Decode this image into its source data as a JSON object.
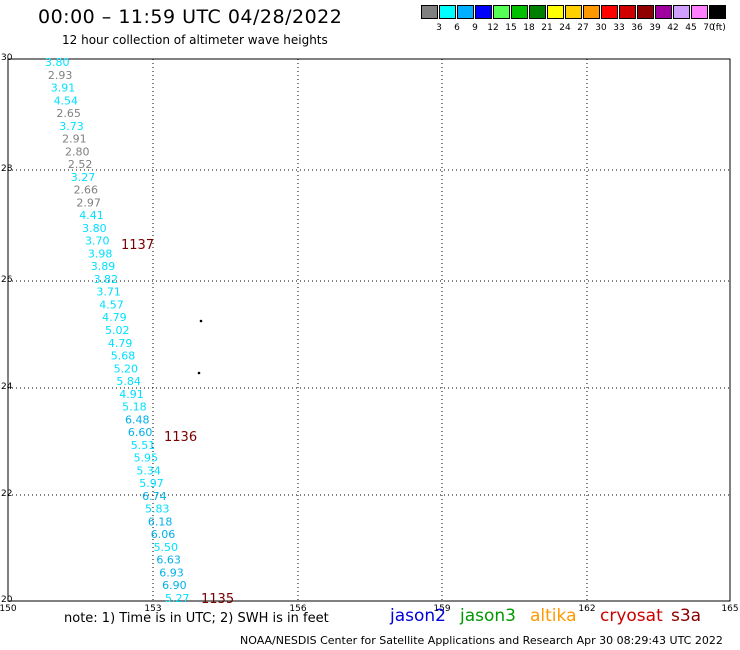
{
  "header": {
    "title": "00:00 – 11:59 UTC 04/28/2022",
    "subtitle": "12 hour collection of altimeter wave heights"
  },
  "colorbar": {
    "unit": "(ft)",
    "swatches": [
      {
        "color": "#808080",
        "label": "3"
      },
      {
        "color": "#00ffff",
        "label": "6"
      },
      {
        "color": "#00b0ff",
        "label": "9"
      },
      {
        "color": "#0000ff",
        "label": "12"
      },
      {
        "color": "#55ff55",
        "label": "15"
      },
      {
        "color": "#00c000",
        "label": "18"
      },
      {
        "color": "#008000",
        "label": "21"
      },
      {
        "color": "#ffff00",
        "label": "24"
      },
      {
        "color": "#ffd000",
        "label": "27"
      },
      {
        "color": "#ff9900",
        "label": "30"
      },
      {
        "color": "#ff0000",
        "label": "33"
      },
      {
        "color": "#d00000",
        "label": "36"
      },
      {
        "color": "#900000",
        "label": "39"
      },
      {
        "color": "#a000a0",
        "label": "42"
      },
      {
        "color": "#d0a0ff",
        "label": "45"
      },
      {
        "color": "#ff80ff",
        "label": "70"
      },
      {
        "color": "#000000",
        "label": ""
      }
    ]
  },
  "axes": {
    "lat_ticks": [
      "30",
      "28",
      "26",
      "24",
      "22",
      "20"
    ],
    "lon_ticks": [
      "150",
      "153",
      "156",
      "159",
      "162",
      "165"
    ]
  },
  "observations": [
    {
      "value": "3.80",
      "color": "#00e0ff"
    },
    {
      "value": "2.93",
      "color": "#808080"
    },
    {
      "value": "3.91",
      "color": "#00e0ff"
    },
    {
      "value": "4.54",
      "color": "#00e0ff"
    },
    {
      "value": "2.65",
      "color": "#808080"
    },
    {
      "value": "3.73",
      "color": "#00e0ff"
    },
    {
      "value": "2.91",
      "color": "#808080"
    },
    {
      "value": "2.80",
      "color": "#808080"
    },
    {
      "value": "2.52",
      "color": "#808080"
    },
    {
      "value": "3.27",
      "color": "#00e0ff"
    },
    {
      "value": "2.66",
      "color": "#808080"
    },
    {
      "value": "2.97",
      "color": "#808080"
    },
    {
      "value": "4.41",
      "color": "#00e0ff"
    },
    {
      "value": "3.80",
      "color": "#00e0ff"
    },
    {
      "value": "3.70",
      "color": "#00e0ff"
    },
    {
      "value": "3.98",
      "color": "#00e0ff"
    },
    {
      "value": "3.89",
      "color": "#00e0ff"
    },
    {
      "value": "3.82",
      "color": "#00e0ff"
    },
    {
      "value": "3.71",
      "color": "#00e0ff"
    },
    {
      "value": "4.57",
      "color": "#00e0ff"
    },
    {
      "value": "4.79",
      "color": "#00e0ff"
    },
    {
      "value": "5.02",
      "color": "#00e0ff"
    },
    {
      "value": "4.79",
      "color": "#00e0ff"
    },
    {
      "value": "5.68",
      "color": "#00e0ff"
    },
    {
      "value": "5.20",
      "color": "#00e0ff"
    },
    {
      "value": "5.84",
      "color": "#00e0ff"
    },
    {
      "value": "4.91",
      "color": "#00e0ff"
    },
    {
      "value": "5.18",
      "color": "#00e0ff"
    },
    {
      "value": "6.48",
      "color": "#00b0e8"
    },
    {
      "value": "6.60",
      "color": "#00b0e8"
    },
    {
      "value": "5.51",
      "color": "#00e0ff"
    },
    {
      "value": "5.95",
      "color": "#00e0ff"
    },
    {
      "value": "5.34",
      "color": "#00e0ff"
    },
    {
      "value": "5.97",
      "color": "#00e0ff"
    },
    {
      "value": "6.74",
      "color": "#00b0e8"
    },
    {
      "value": "5.83",
      "color": "#00e0ff"
    },
    {
      "value": "6.18",
      "color": "#00b0e8"
    },
    {
      "value": "6.06",
      "color": "#00b0e8"
    },
    {
      "value": "5.50",
      "color": "#00e0ff"
    },
    {
      "value": "6.63",
      "color": "#00b0e8"
    },
    {
      "value": "6.93",
      "color": "#00b0e8"
    },
    {
      "value": "6.90",
      "color": "#00b0e8"
    },
    {
      "value": "5.27",
      "color": "#00e0ff"
    }
  ],
  "pass_times": [
    "1137",
    "1136",
    "1135"
  ],
  "footer": {
    "note": "note:  1) Time is in UTC;  2) SWH is in feet",
    "legend": [
      {
        "name": "jason2",
        "color": "#0000dd"
      },
      {
        "name": "jason3",
        "color": "#009900"
      },
      {
        "name": "altika",
        "color": "#ff9900"
      },
      {
        "name": "cryosat",
        "color": "#cc0000"
      },
      {
        "name": "s3a",
        "color": "#880000"
      }
    ],
    "credit": "NOAA/NESDIS Center for Satellite Applications and Research     Apr 30 08:29:43 UTC 2022"
  }
}
